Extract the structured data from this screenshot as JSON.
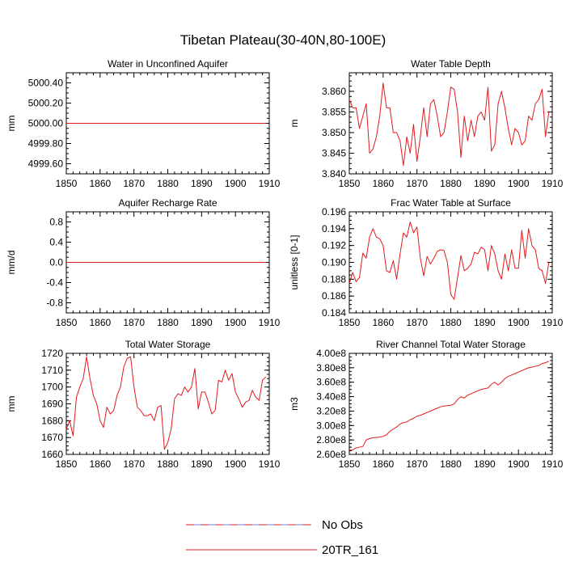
{
  "title": "Tibetan Plateau(30-40N,80-100E)",
  "legend": {
    "items": [
      {
        "label": "No Obs",
        "style": "dashed",
        "colors": [
          "#e31a1c",
          "#6a6acd"
        ]
      },
      {
        "label": "20TR_161",
        "style": "solid",
        "colors": [
          "#e31a1c"
        ]
      }
    ]
  },
  "chart_data": [
    {
      "type": "line",
      "title": "Water in Unconfined Aquifer",
      "xlabel": "",
      "ylabel": "mm",
      "xlim": [
        1850,
        1910
      ],
      "ylim": [
        4999.5,
        5000.5
      ],
      "xticks": [
        1850,
        1860,
        1870,
        1880,
        1890,
        1900,
        1910
      ],
      "yticks": [
        4999.6,
        4999.8,
        5000.0,
        5000.2,
        5000.4
      ],
      "ytick_labels": [
        "4999.60",
        "4999.80",
        "5000.00",
        "5000.20",
        "5000.40"
      ],
      "series": [
        {
          "name": "20TR_161",
          "color": "#e31a1c",
          "x_start": 1850,
          "x_step": 1,
          "values": [
            5000,
            5000,
            5000,
            5000,
            5000,
            5000,
            5000,
            5000,
            5000,
            5000,
            5000,
            5000,
            5000,
            5000,
            5000,
            5000,
            5000,
            5000,
            5000,
            5000,
            5000,
            5000,
            5000,
            5000,
            5000,
            5000,
            5000,
            5000,
            5000,
            5000,
            5000,
            5000,
            5000,
            5000,
            5000,
            5000,
            5000,
            5000,
            5000,
            5000,
            5000,
            5000,
            5000,
            5000,
            5000,
            5000,
            5000,
            5000,
            5000,
            5000,
            5000,
            5000,
            5000,
            5000,
            5000,
            5000,
            5000,
            5000,
            5000,
            5000
          ]
        }
      ]
    },
    {
      "type": "line",
      "title": "Water Table Depth",
      "xlabel": "",
      "ylabel": "m",
      "xlim": [
        1850,
        1910
      ],
      "ylim": [
        3.84,
        3.8645
      ],
      "xticks": [
        1850,
        1860,
        1870,
        1880,
        1890,
        1900,
        1910
      ],
      "yticks": [
        3.84,
        3.845,
        3.85,
        3.855,
        3.86
      ],
      "ytick_labels": [
        "3.840",
        "3.845",
        "3.850",
        "3.855",
        "3.860"
      ],
      "series": [
        {
          "name": "20TR_161",
          "color": "#e31a1c",
          "x_start": 1850,
          "x_step": 1,
          "values": [
            3.858,
            3.856,
            3.856,
            3.851,
            3.854,
            3.857,
            3.845,
            3.846,
            3.849,
            3.854,
            3.862,
            3.856,
            3.856,
            3.85,
            3.85,
            3.848,
            3.842,
            3.849,
            3.845,
            3.852,
            3.843,
            3.849,
            3.856,
            3.849,
            3.857,
            3.858,
            3.854,
            3.849,
            3.85,
            3.855,
            3.861,
            3.8605,
            3.855,
            3.844,
            3.854,
            3.848,
            3.853,
            3.849,
            3.854,
            3.855,
            3.853,
            3.861,
            3.8455,
            3.847,
            3.857,
            3.86,
            3.856,
            3.851,
            3.847,
            3.851,
            3.85,
            3.847,
            3.848,
            3.854,
            3.853,
            3.857,
            3.858,
            3.8605,
            3.849,
            3.855
          ]
        }
      ]
    },
    {
      "type": "line",
      "title": "Aquifer Recharge Rate",
      "xlabel": "",
      "ylabel": "mm/d",
      "xlim": [
        1850,
        1910
      ],
      "ylim": [
        -1.0,
        1.0
      ],
      "xticks": [
        1850,
        1860,
        1870,
        1880,
        1890,
        1900,
        1910
      ],
      "yticks": [
        -0.8,
        -0.4,
        0.0,
        0.4,
        0.8
      ],
      "ytick_labels": [
        "-0.8",
        "-0.4",
        "0.0",
        "0.4",
        "0.8"
      ],
      "series": [
        {
          "name": "20TR_161",
          "color": "#e31a1c",
          "x_start": 1850,
          "x_step": 1,
          "values": [
            0,
            0,
            0,
            0,
            0,
            0,
            0,
            0,
            0,
            0,
            0,
            0,
            0,
            0,
            0,
            0,
            0,
            0,
            0,
            0,
            0,
            0,
            0,
            0,
            0,
            0,
            0,
            0,
            0,
            0,
            0,
            0,
            0,
            0,
            0,
            0,
            0,
            0,
            0,
            0,
            0,
            0,
            0,
            0,
            0,
            0,
            0,
            0,
            0,
            0,
            0,
            0,
            0,
            0,
            0,
            0,
            0,
            0,
            0,
            0
          ]
        }
      ]
    },
    {
      "type": "line",
      "title": "Frac Water Table at Surface",
      "xlabel": "",
      "ylabel": "unitless [0-1]",
      "xlim": [
        1850,
        1910
      ],
      "ylim": [
        0.184,
        0.196
      ],
      "xticks": [
        1850,
        1860,
        1870,
        1880,
        1890,
        1900,
        1910
      ],
      "yticks": [
        0.184,
        0.186,
        0.188,
        0.19,
        0.192,
        0.194,
        0.196
      ],
      "ytick_labels": [
        "0.184",
        "0.186",
        "0.188",
        "0.190",
        "0.192",
        "0.194",
        "0.196"
      ],
      "series": [
        {
          "name": "20TR_161",
          "color": "#e31a1c",
          "x_start": 1850,
          "x_step": 1,
          "values": [
            0.1875,
            0.1888,
            0.1877,
            0.1882,
            0.1911,
            0.1905,
            0.193,
            0.194,
            0.193,
            0.1928,
            0.192,
            0.189,
            0.1888,
            0.1902,
            0.188,
            0.191,
            0.1935,
            0.193,
            0.1948,
            0.1935,
            0.1942,
            0.1905,
            0.1884,
            0.1907,
            0.1898,
            0.1905,
            0.1913,
            0.1915,
            0.1914,
            0.19,
            0.1862,
            0.1856,
            0.1882,
            0.1908,
            0.189,
            0.1893,
            0.1898,
            0.1912,
            0.191,
            0.1918,
            0.1915,
            0.189,
            0.192,
            0.191,
            0.189,
            0.188,
            0.191,
            0.189,
            0.1915,
            0.1893,
            0.1893,
            0.1938,
            0.1905,
            0.194,
            0.192,
            0.1915,
            0.1893,
            0.189,
            0.1875,
            0.19
          ]
        }
      ]
    },
    {
      "type": "line",
      "title": "Total Water Storage",
      "xlabel": "",
      "ylabel": "mm",
      "xlim": [
        1850,
        1910
      ],
      "ylim": [
        1660,
        1720
      ],
      "xticks": [
        1850,
        1860,
        1870,
        1880,
        1890,
        1900,
        1910
      ],
      "yticks": [
        1660,
        1670,
        1680,
        1690,
        1700,
        1710,
        1720
      ],
      "ytick_labels": [
        "1660",
        "1670",
        "1680",
        "1690",
        "1700",
        "1710",
        "1720"
      ],
      "series": [
        {
          "name": "20TR_161",
          "color": "#e31a1c",
          "x_start": 1850,
          "x_step": 1,
          "values": [
            1675,
            1680,
            1671,
            1694,
            1700,
            1705,
            1718,
            1705,
            1695,
            1690,
            1680,
            1676,
            1688,
            1684,
            1686,
            1695,
            1700,
            1712,
            1717,
            1718,
            1700,
            1688,
            1686,
            1683,
            1683,
            1684,
            1680,
            1688,
            1689,
            1663,
            1667,
            1675,
            1693,
            1696,
            1695,
            1700,
            1697,
            1700,
            1711,
            1687,
            1697,
            1697,
            1691,
            1684,
            1686,
            1704,
            1703,
            1710,
            1704,
            1708,
            1697,
            1693,
            1688,
            1691,
            1692,
            1698,
            1694,
            1692,
            1704,
            1706
          ]
        }
      ]
    },
    {
      "type": "line",
      "title": "River Channel Total Water Storage",
      "xlabel": "",
      "ylabel": "m3",
      "xlim": [
        1850,
        1910
      ],
      "ylim": [
        260000000,
        400000000
      ],
      "xticks": [
        1850,
        1860,
        1870,
        1880,
        1890,
        1900,
        1910
      ],
      "yticks": [
        260000000,
        280000000,
        300000000,
        320000000,
        340000000,
        360000000,
        380000000,
        400000000
      ],
      "ytick_labels": [
        "2.60e8",
        "2.80e8",
        "3.00e8",
        "3.20e8",
        "3.40e8",
        "3.60e8",
        "3.80e8",
        "4.00e8"
      ],
      "series": [
        {
          "name": "20TR_161",
          "color": "#e31a1c",
          "x_start": 1850,
          "x_step": 1,
          "values": [
            266000000,
            266000000,
            269000000,
            270000000,
            271000000,
            280000000,
            282000000,
            283000000,
            283500000,
            284000000,
            285000000,
            287000000,
            292000000,
            295000000,
            298000000,
            302000000,
            304000000,
            305000000,
            308000000,
            310000000,
            313000000,
            314000000,
            316000000,
            318000000,
            320000000,
            322000000,
            324000000,
            326000000,
            327000000,
            327500000,
            328000000,
            330000000,
            336000000,
            340000000,
            338000000,
            342000000,
            344000000,
            346000000,
            348000000,
            350000000,
            351000000,
            352000000,
            357000000,
            360000000,
            356000000,
            360000000,
            365000000,
            368000000,
            370000000,
            372000000,
            374000000,
            376000000,
            378000000,
            380000000,
            381000000,
            382000000,
            383000000,
            386000000,
            387000000,
            389000000
          ]
        }
      ]
    }
  ]
}
